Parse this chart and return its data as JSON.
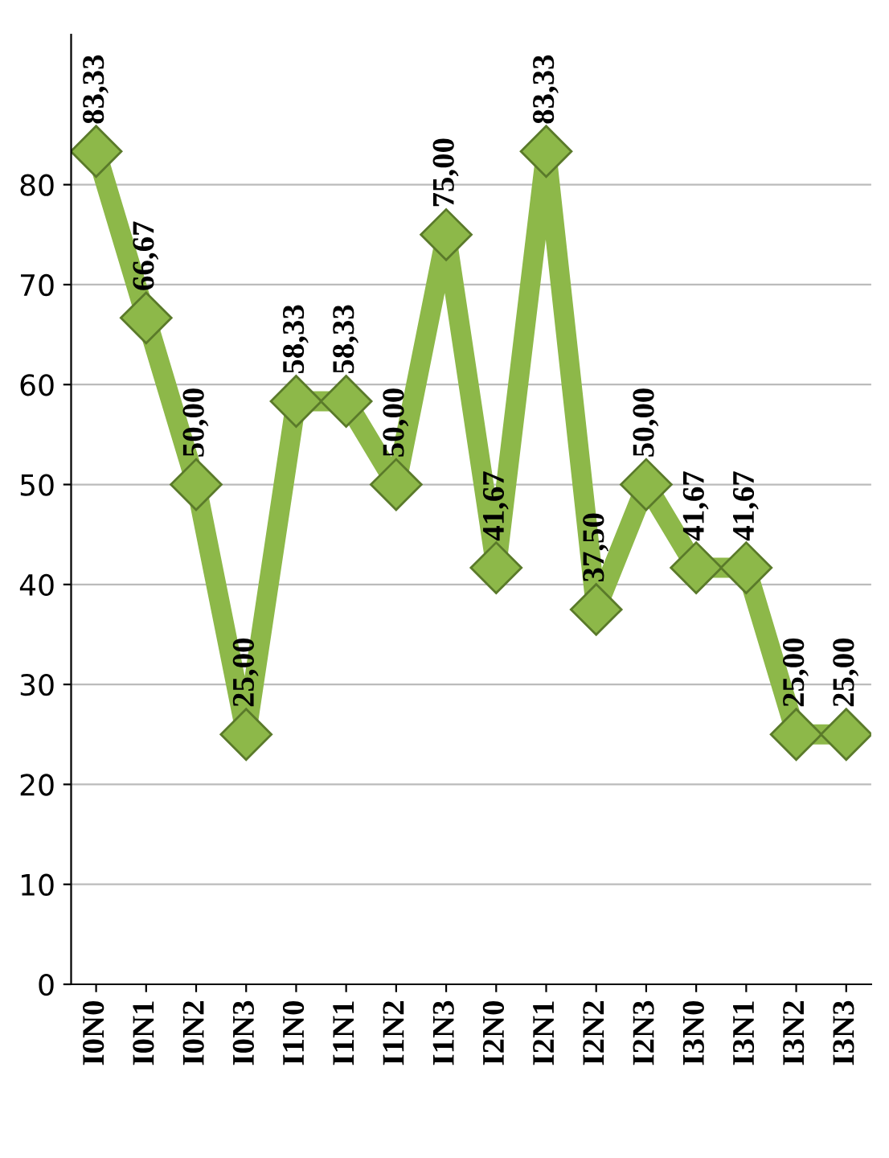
{
  "chart_data": {
    "type": "line",
    "categories": [
      "I0N0",
      "I0N1",
      "I0N2",
      "I0N3",
      "I1N0",
      "I1N1",
      "I1N2",
      "I1N3",
      "I2N0",
      "I2N1",
      "I2N2",
      "I2N3",
      "I3N0",
      "I3N1",
      "I3N2",
      "I3N3"
    ],
    "series": [
      {
        "color": "#8db849",
        "values": [
          83.33,
          66.67,
          50.0,
          25.0,
          58.33,
          58.33,
          50.0,
          75.0,
          41.67,
          83.33,
          37.5,
          50.0,
          41.67,
          41.67,
          25.0,
          25.0
        ],
        "value_labels": [
          "83,33",
          "66,67",
          "50,00",
          "25,00",
          "58,33",
          "58,33",
          "50,00",
          "75,00",
          "41,67",
          "83,33",
          "37,50",
          "50,00",
          "41,67",
          "41,67",
          "25,00",
          "25,00"
        ]
      }
    ],
    "ylim": [
      0,
      95
    ],
    "yticks": [
      0,
      10,
      20,
      30,
      40,
      50,
      60,
      70,
      80
    ],
    "grid": "y",
    "marker": "diamond",
    "line_style": "solid"
  }
}
